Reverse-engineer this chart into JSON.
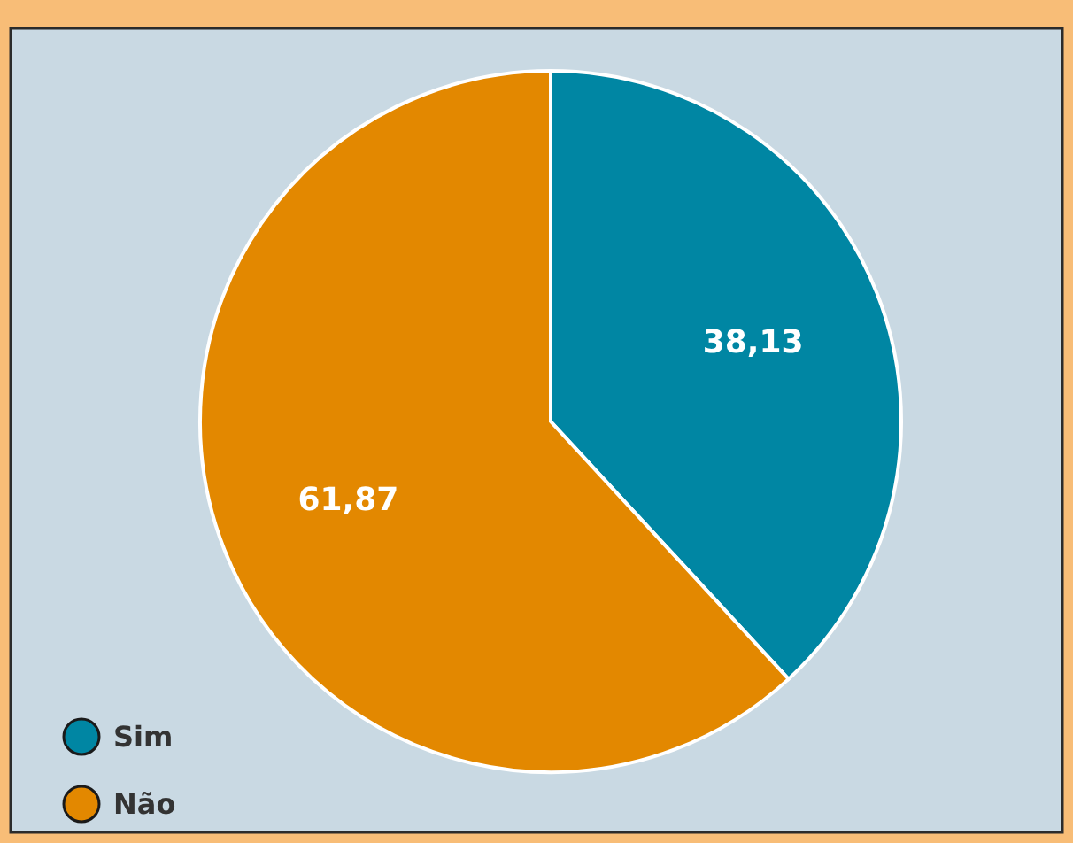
{
  "chart_data": {
    "type": "pie",
    "categories": [
      "Sim",
      "Não"
    ],
    "values": [
      38.13,
      61.87
    ],
    "colors": [
      "#0086a3",
      "#e38800"
    ],
    "value_labels": [
      "38,13",
      "61,87"
    ],
    "legend": "bottom left"
  }
}
